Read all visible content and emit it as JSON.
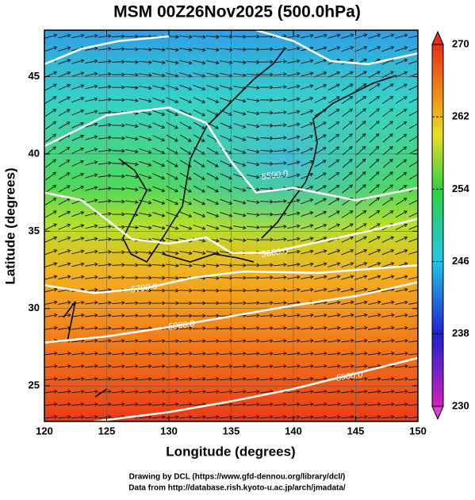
{
  "chart_data": {
    "type": "contour-map",
    "title": "MSM 00Z26Nov2025 (500.0hPa)",
    "x_label": "Longitude (degrees)",
    "y_label": "Latitude  (degrees)",
    "xlim": [
      120,
      150
    ],
    "ylim": [
      22.7,
      48
    ],
    "xticks": [
      120,
      125,
      130,
      135,
      140,
      145,
      150
    ],
    "yticks": [
      25,
      30,
      35,
      40,
      45
    ],
    "grid": true,
    "contours": [
      {
        "value": 5500,
        "label": "5500.0"
      },
      {
        "value": 5600,
        "label": "5600.0"
      },
      {
        "value": 5700,
        "label": "5700.0"
      },
      {
        "value": 5800,
        "label": "5800.0"
      },
      {
        "value": 5900,
        "label": "5900.0"
      }
    ],
    "colorbar": {
      "lim": [
        230,
        270
      ],
      "ticks": [
        230,
        238,
        246,
        254,
        262,
        270
      ]
    },
    "credits": [
      "Drawing by DCL (https://www.gfd-dennou.org/library/dcl/)",
      "Data from http://database.rish.kyoto-u.ac.jp/arch/jmadata/"
    ]
  }
}
